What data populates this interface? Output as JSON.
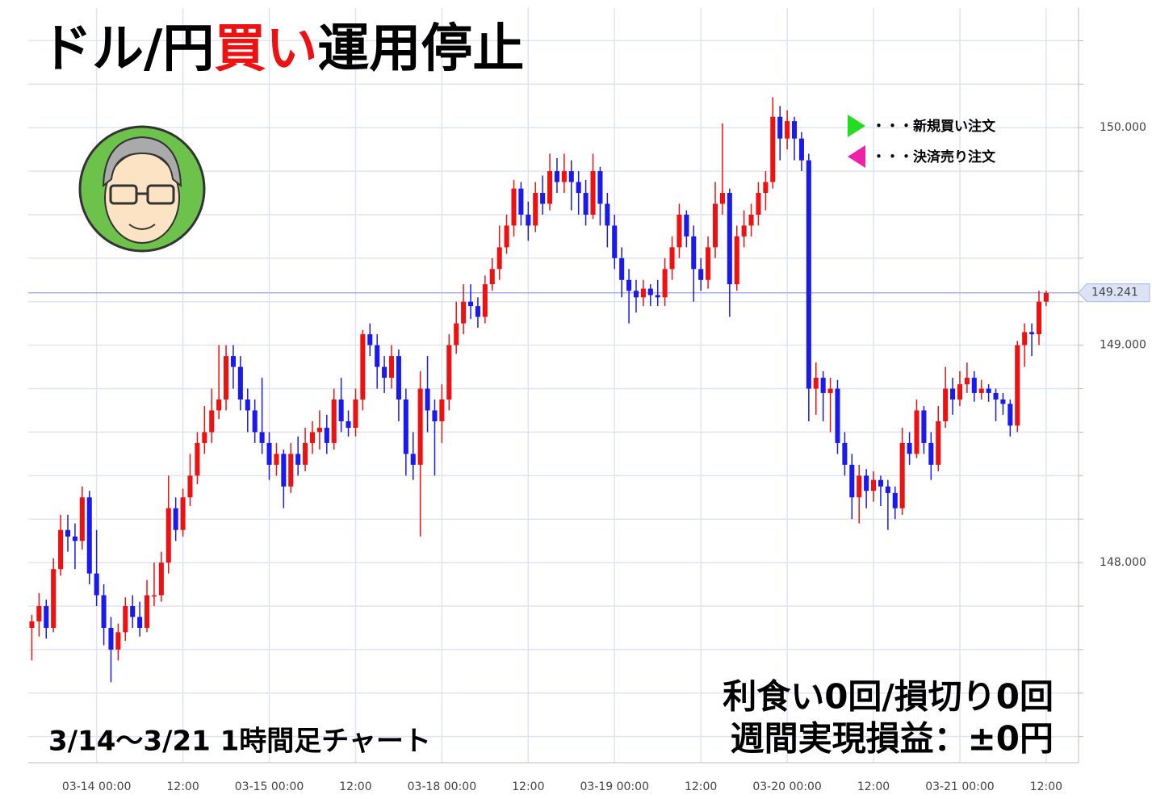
{
  "header": {
    "title_parts": [
      {
        "text": "ドル/円",
        "color": "#000000"
      },
      {
        "text": "買い",
        "color": "#ee1111"
      },
      {
        "text": "運用停止",
        "color": "#000000"
      }
    ]
  },
  "legend": [
    {
      "text": "・・・新規買い注文",
      "color": "#22dd22"
    },
    {
      "text": "・・・決済売り注文",
      "color": "#ee22aa"
    }
  ],
  "period": "3/14〜3/21  1時間足チャート",
  "summary": [
    "利食い0回/損切り0回",
    "週間実現損益：±0円"
  ],
  "chart_data": {
    "type": "candlestick",
    "up_color": "#ee1111",
    "down_color": "#1a1aee",
    "grid": true,
    "ylim": [
      147.08,
      150.55
    ],
    "yticks": [
      {
        "value": 148,
        "label": "148.000"
      },
      {
        "value": 149,
        "label": "149.000"
      },
      {
        "value": 150,
        "label": "150.000"
      }
    ],
    "minor_yticks": [
      147.2,
      147.4,
      147.6,
      147.8,
      148.2,
      148.4,
      148.6,
      148.8,
      149.2,
      149.4,
      149.6,
      149.8,
      150.2,
      150.4
    ],
    "xlim": [
      -0.5,
      145.5
    ],
    "xticks": [
      {
        "value": 9,
        "label": "03-14 00:00"
      },
      {
        "value": 21,
        "label": "12:00"
      },
      {
        "value": 33,
        "label": "03-15 00:00"
      },
      {
        "value": 45,
        "label": "12:00"
      },
      {
        "value": 57,
        "label": "03-18 00:00"
      },
      {
        "value": 69,
        "label": "12:00"
      },
      {
        "value": 81,
        "label": "03-19 00:00"
      },
      {
        "value": 93,
        "label": "12:00"
      },
      {
        "value": 105,
        "label": "03-20 00:00"
      },
      {
        "value": 117,
        "label": "12:00"
      },
      {
        "value": 129,
        "label": "03-21 00:00"
      },
      {
        "value": 141,
        "label": "12:00"
      }
    ],
    "current_price": {
      "value": 149.241,
      "label": "149.241"
    },
    "ohlc": [
      [
        147.7,
        147.76,
        147.55,
        147.73
      ],
      [
        147.73,
        147.86,
        147.66,
        147.8
      ],
      [
        147.8,
        147.83,
        147.65,
        147.7
      ],
      [
        147.7,
        148.02,
        147.68,
        147.97
      ],
      [
        147.97,
        148.22,
        147.94,
        148.15
      ],
      [
        148.15,
        148.22,
        148.05,
        148.12
      ],
      [
        148.12,
        148.18,
        147.97,
        148.1
      ],
      [
        148.1,
        148.35,
        148.06,
        148.3
      ],
      [
        148.3,
        148.33,
        147.9,
        147.95
      ],
      [
        147.95,
        148.15,
        147.8,
        147.85
      ],
      [
        147.85,
        147.9,
        147.62,
        147.7
      ],
      [
        147.7,
        147.75,
        147.45,
        147.6
      ],
      [
        147.6,
        147.72,
        147.55,
        147.68
      ],
      [
        147.68,
        147.84,
        147.64,
        147.8
      ],
      [
        147.8,
        147.85,
        147.7,
        147.75
      ],
      [
        147.75,
        147.82,
        147.66,
        147.7
      ],
      [
        147.7,
        147.92,
        147.68,
        147.85
      ],
      [
        147.85,
        148.0,
        147.8,
        147.85
      ],
      [
        147.85,
        148.05,
        147.82,
        148.0
      ],
      [
        148.0,
        148.4,
        147.95,
        148.25
      ],
      [
        148.25,
        148.3,
        148.1,
        148.15
      ],
      [
        148.15,
        148.34,
        148.12,
        148.3
      ],
      [
        148.3,
        148.5,
        148.26,
        148.4
      ],
      [
        148.4,
        148.6,
        148.36,
        148.55
      ],
      [
        148.55,
        148.72,
        148.5,
        148.6
      ],
      [
        148.6,
        148.8,
        148.55,
        148.7
      ],
      [
        148.7,
        149.0,
        148.66,
        148.75
      ],
      [
        148.75,
        149.0,
        148.7,
        148.95
      ],
      [
        148.95,
        149.0,
        148.8,
        148.9
      ],
      [
        148.9,
        148.95,
        148.7,
        148.75
      ],
      [
        148.75,
        148.8,
        148.6,
        148.7
      ],
      [
        148.7,
        148.75,
        148.55,
        148.6
      ],
      [
        148.6,
        148.85,
        148.5,
        148.55
      ],
      [
        148.55,
        148.6,
        148.38,
        148.45
      ],
      [
        148.45,
        148.55,
        148.4,
        148.5
      ],
      [
        148.5,
        148.52,
        148.25,
        148.35
      ],
      [
        148.35,
        148.55,
        148.32,
        148.5
      ],
      [
        148.5,
        148.58,
        148.4,
        148.45
      ],
      [
        148.45,
        148.62,
        148.42,
        148.55
      ],
      [
        148.55,
        148.65,
        148.5,
        148.6
      ],
      [
        148.6,
        148.7,
        148.52,
        148.62
      ],
      [
        148.62,
        148.68,
        148.5,
        148.55
      ],
      [
        148.55,
        148.8,
        148.52,
        148.75
      ],
      [
        148.75,
        148.85,
        148.6,
        148.65
      ],
      [
        148.65,
        148.7,
        148.58,
        148.62
      ],
      [
        148.62,
        148.8,
        148.58,
        148.75
      ],
      [
        148.75,
        149.07,
        148.7,
        149.05
      ],
      [
        149.05,
        149.1,
        148.95,
        149.0
      ],
      [
        149.0,
        149.05,
        148.8,
        148.9
      ],
      [
        148.9,
        148.95,
        148.78,
        148.85
      ],
      [
        148.85,
        149.0,
        148.8,
        148.95
      ],
      [
        148.95,
        148.98,
        148.65,
        148.75
      ],
      [
        148.75,
        148.8,
        148.4,
        148.5
      ],
      [
        148.5,
        148.6,
        148.38,
        148.45
      ],
      [
        148.45,
        148.88,
        148.12,
        148.8
      ],
      [
        148.8,
        148.95,
        148.6,
        148.7
      ],
      [
        148.7,
        148.75,
        148.4,
        148.65
      ],
      [
        148.65,
        148.82,
        148.55,
        148.75
      ],
      [
        148.75,
        149.05,
        148.7,
        149.0
      ],
      [
        149.0,
        149.2,
        148.96,
        149.1
      ],
      [
        149.1,
        149.28,
        149.05,
        149.2
      ],
      [
        149.2,
        149.28,
        149.12,
        149.18
      ],
      [
        149.18,
        149.22,
        149.08,
        149.13
      ],
      [
        149.13,
        149.32,
        149.1,
        149.28
      ],
      [
        149.28,
        149.4,
        149.25,
        149.35
      ],
      [
        149.35,
        149.55,
        149.3,
        149.45
      ],
      [
        149.45,
        149.6,
        149.42,
        149.55
      ],
      [
        149.55,
        149.76,
        149.5,
        149.72
      ],
      [
        149.72,
        149.75,
        149.55,
        149.6
      ],
      [
        149.6,
        149.66,
        149.48,
        149.55
      ],
      [
        149.55,
        149.75,
        149.52,
        149.7
      ],
      [
        149.7,
        149.78,
        149.6,
        149.65
      ],
      [
        149.65,
        149.88,
        149.62,
        149.8
      ],
      [
        149.8,
        149.86,
        149.7,
        149.75
      ],
      [
        149.75,
        149.88,
        149.7,
        149.8
      ],
      [
        149.8,
        149.85,
        149.62,
        149.75
      ],
      [
        149.75,
        149.8,
        149.6,
        149.7
      ],
      [
        149.7,
        149.76,
        149.55,
        149.6
      ],
      [
        149.6,
        149.88,
        149.58,
        149.8
      ],
      [
        149.8,
        149.82,
        149.55,
        149.65
      ],
      [
        149.65,
        149.7,
        149.45,
        149.55
      ],
      [
        149.55,
        149.6,
        149.35,
        149.4
      ],
      [
        149.4,
        149.45,
        149.22,
        149.3
      ],
      [
        149.3,
        149.35,
        149.1,
        149.25
      ],
      [
        149.25,
        149.3,
        149.15,
        149.22
      ],
      [
        149.22,
        149.3,
        149.18,
        149.26
      ],
      [
        149.26,
        149.28,
        149.18,
        149.23
      ],
      [
        149.23,
        149.3,
        149.18,
        149.22
      ],
      [
        149.22,
        149.4,
        149.18,
        149.35
      ],
      [
        149.35,
        149.5,
        149.3,
        149.45
      ],
      [
        149.45,
        149.65,
        149.4,
        149.6
      ],
      [
        149.6,
        149.62,
        149.45,
        149.5
      ],
      [
        149.5,
        149.55,
        149.2,
        149.35
      ],
      [
        149.35,
        149.4,
        149.25,
        149.3
      ],
      [
        149.3,
        149.5,
        149.26,
        149.45
      ],
      [
        149.45,
        149.75,
        149.4,
        149.65
      ],
      [
        149.65,
        150.02,
        149.6,
        149.7
      ],
      [
        149.7,
        149.72,
        149.13,
        149.28
      ],
      [
        149.28,
        149.55,
        149.25,
        149.5
      ],
      [
        149.5,
        149.62,
        149.45,
        149.55
      ],
      [
        149.55,
        149.65,
        149.5,
        149.6
      ],
      [
        149.6,
        149.75,
        149.55,
        149.7
      ],
      [
        149.7,
        149.8,
        149.62,
        149.75
      ],
      [
        149.75,
        150.14,
        149.72,
        150.05
      ],
      [
        150.05,
        150.1,
        149.85,
        149.95
      ],
      [
        149.95,
        150.08,
        149.9,
        150.03
      ],
      [
        150.03,
        150.05,
        149.85,
        149.95
      ],
      [
        149.95,
        149.98,
        149.8,
        149.85
      ],
      [
        149.85,
        149.88,
        148.65,
        148.8
      ],
      [
        148.8,
        148.92,
        148.68,
        148.85
      ],
      [
        148.85,
        148.88,
        148.65,
        148.78
      ],
      [
        148.78,
        148.85,
        148.6,
        148.8
      ],
      [
        148.8,
        148.84,
        148.5,
        148.55
      ],
      [
        148.55,
        148.6,
        148.4,
        148.45
      ],
      [
        148.45,
        148.5,
        148.2,
        148.3
      ],
      [
        148.3,
        148.45,
        148.18,
        148.4
      ],
      [
        148.4,
        148.43,
        148.25,
        148.33
      ],
      [
        148.33,
        148.42,
        148.28,
        148.38
      ],
      [
        148.38,
        148.4,
        148.26,
        148.35
      ],
      [
        148.35,
        148.38,
        148.15,
        148.32
      ],
      [
        148.32,
        148.35,
        148.2,
        148.25
      ],
      [
        148.25,
        148.62,
        148.22,
        148.55
      ],
      [
        148.55,
        148.6,
        148.45,
        148.5
      ],
      [
        148.5,
        148.75,
        148.48,
        148.7
      ],
      [
        148.7,
        148.72,
        148.5,
        148.55
      ],
      [
        148.55,
        148.6,
        148.38,
        148.45
      ],
      [
        148.45,
        148.72,
        148.42,
        148.65
      ],
      [
        148.65,
        148.9,
        148.62,
        148.8
      ],
      [
        148.8,
        148.85,
        148.68,
        148.75
      ],
      [
        148.75,
        148.88,
        148.72,
        148.82
      ],
      [
        148.82,
        148.92,
        148.78,
        148.85
      ],
      [
        148.85,
        148.88,
        148.74,
        148.78
      ],
      [
        148.78,
        148.84,
        148.75,
        148.8
      ],
      [
        148.8,
        148.82,
        148.74,
        148.78
      ],
      [
        148.78,
        148.8,
        148.65,
        148.75
      ],
      [
        148.75,
        148.78,
        148.68,
        148.73
      ],
      [
        148.73,
        148.75,
        148.58,
        148.63
      ],
      [
        148.63,
        149.02,
        148.6,
        149.0
      ],
      [
        149.0,
        149.1,
        148.9,
        149.06
      ],
      [
        149.06,
        149.1,
        148.95,
        149.05
      ],
      [
        149.05,
        149.25,
        149.0,
        149.2
      ],
      [
        149.2,
        149.25,
        149.18,
        149.24
      ]
    ]
  }
}
